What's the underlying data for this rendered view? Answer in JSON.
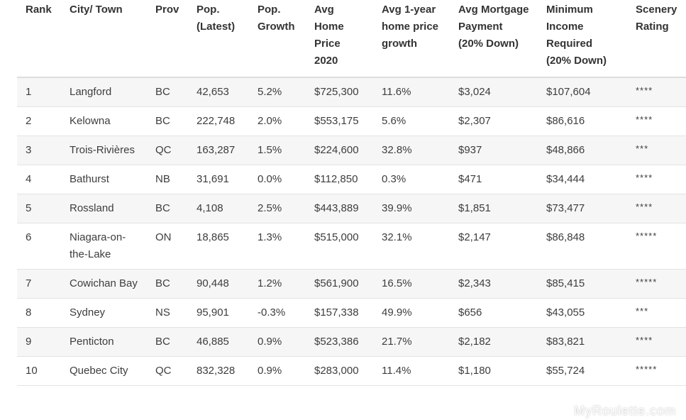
{
  "table": {
    "headers": [
      "Rank",
      "City/ Town",
      "Prov",
      "Pop. (Latest)",
      "Pop. Growth",
      "Avg Home Price 2020",
      "Avg 1-year home price growth",
      "Avg Mortgage Payment (20% Down)",
      "Minimum Income Required (20% Down)",
      "Scenery Rating"
    ],
    "rows": [
      [
        "1",
        "Langford",
        "BC",
        "42,653",
        "5.2%",
        "$725,300",
        "11.6%",
        "$3,024",
        "$107,604",
        "****"
      ],
      [
        "2",
        "Kelowna",
        "BC",
        "222,748",
        "2.0%",
        "$553,175",
        "5.6%",
        "$2,307",
        "$86,616",
        "****"
      ],
      [
        "3",
        "Trois-Rivières",
        "QC",
        "163,287",
        "1.5%",
        "$224,600",
        "32.8%",
        "$937",
        "$48,866",
        "***"
      ],
      [
        "4",
        "Bathurst",
        "NB",
        "31,691",
        "0.0%",
        "$112,850",
        "0.3%",
        "$471",
        "$34,444",
        "****"
      ],
      [
        "5",
        "Rossland",
        "BC",
        "4,108",
        "2.5%",
        "$443,889",
        "39.9%",
        "$1,851",
        "$73,477",
        "****"
      ],
      [
        "6",
        "Niagara-on-the-Lake",
        "ON",
        "18,865",
        "1.3%",
        "$515,000",
        "32.1%",
        "$2,147",
        "$86,848",
        "*****"
      ],
      [
        "7",
        "Cowichan Bay",
        "BC",
        "90,448",
        "1.2%",
        "$561,900",
        "16.5%",
        "$2,343",
        "$85,415",
        "*****"
      ],
      [
        "8",
        "Sydney",
        "NS",
        "95,901",
        "-0.3%",
        "$157,338",
        "49.9%",
        "$656",
        "$43,055",
        "***"
      ],
      [
        "9",
        "Penticton",
        "BC",
        "46,885",
        "0.9%",
        "$523,386",
        "21.7%",
        "$2,182",
        "$83,821",
        "****"
      ],
      [
        "10",
        "Quebec City",
        "QC",
        "832,328",
        "0.9%",
        "$283,000",
        "11.4%",
        "$1,180",
        "$55,724",
        "*****"
      ]
    ]
  },
  "watermark": "MyRoulette.com"
}
